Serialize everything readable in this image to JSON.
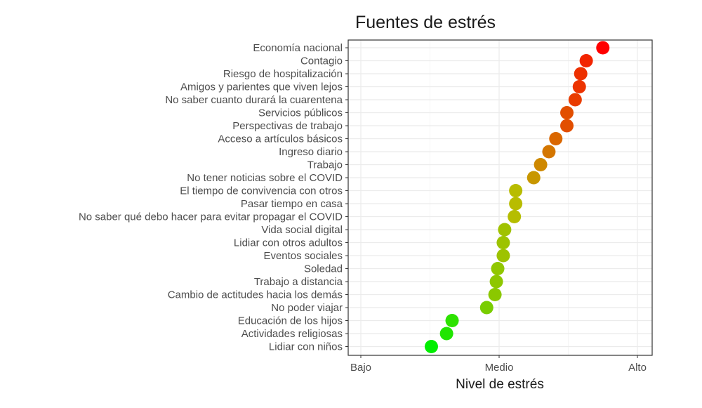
{
  "chart_data": {
    "type": "scatter",
    "title": "Fuentes de estrés",
    "xlabel": "Nivel de estrés",
    "ylabel": "",
    "xlim": [
      0,
      2
    ],
    "x_ticks": [
      {
        "value": 0,
        "label": "Bajo"
      },
      {
        "value": 1,
        "label": "Medio"
      },
      {
        "value": 2,
        "label": "Alto"
      }
    ],
    "grid": true,
    "legend": "none",
    "color_scale": {
      "low": "#00ee00",
      "mid": "#bbbb00",
      "high": "#ff0000"
    },
    "categories": [
      "Economía nacional",
      "Contagio",
      "Riesgo de hospitalización",
      "Amigos y parientes que viven lejos",
      "No saber cuanto durará la cuarentena",
      "Servicios públicos",
      "Perspectivas de trabajo",
      "Acceso a artículos básicos",
      "Ingreso diario",
      "Trabajo",
      "No tener noticias sobre el COVID",
      "El tiempo de convivencia con otros",
      "Pasar tiempo en casa",
      "No saber qué debo hacer para evitar propagar el COVID",
      "Vida social digital",
      "Lidiar con otros adultos",
      "Eventos sociales",
      "Soledad",
      "Trabajo a distancia",
      "Cambio de actitudes hacia los demás",
      "No poder viajar",
      "Educación de los hijos",
      "Actividades religiosas",
      "Lidiar con niños"
    ],
    "values": [
      1.75,
      1.63,
      1.59,
      1.58,
      1.55,
      1.49,
      1.49,
      1.41,
      1.36,
      1.3,
      1.25,
      1.12,
      1.12,
      1.11,
      1.04,
      1.03,
      1.03,
      0.99,
      0.98,
      0.97,
      0.91,
      0.66,
      0.62,
      0.51
    ]
  }
}
